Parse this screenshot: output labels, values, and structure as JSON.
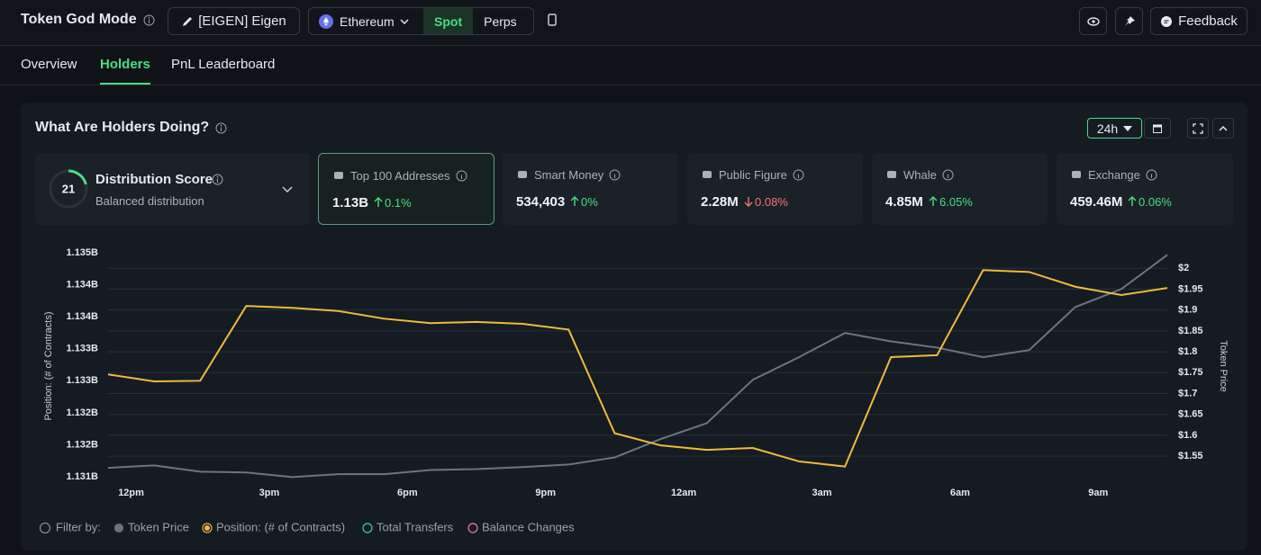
{
  "header": {
    "title": "Token God Mode",
    "token": "[EIGEN] Eigen",
    "chain": "Ethereum",
    "modes": [
      "Spot",
      "Perps"
    ],
    "active_mode": 0,
    "feedback": "Feedback"
  },
  "tabs": {
    "items": [
      "Overview",
      "Holders",
      "PnL Leaderboard"
    ],
    "active": 1
  },
  "panel": {
    "title": "What Are Holders Doing?",
    "range": "24h",
    "score": {
      "value": 21,
      "title": "Distribution Score",
      "subtitle": "Balanced distribution"
    },
    "cards": [
      {
        "label": "Top 100 Addresses",
        "value": "1.13B",
        "change": "0.1%",
        "direction": "up",
        "selected": true
      },
      {
        "label": "Smart Money",
        "value": "534,403",
        "change": "0%",
        "direction": "up"
      },
      {
        "label": "Public Figure",
        "value": "2.28M",
        "change": "0.08%",
        "direction": "down"
      },
      {
        "label": "Whale",
        "value": "4.85M",
        "change": "6.05%",
        "direction": "up"
      },
      {
        "label": "Exchange",
        "value": "459.46M",
        "change": "0.06%",
        "direction": "up"
      }
    ],
    "filter_label": "Filter by:"
  },
  "chart_data": {
    "type": "line",
    "ylabel": "Position: (# of Contracts)",
    "y2label": "Token Price",
    "x": [
      11.5,
      12.5,
      13.5,
      14.5,
      15.5,
      16.5,
      17.5,
      18.5,
      19.5,
      20.5,
      21.5,
      22.5,
      23.5,
      24.5,
      25.5,
      26.5,
      27.5,
      28.5,
      29.5,
      30.5,
      31.5,
      32.5,
      33.5,
      34.5
    ],
    "xlim": [
      11.5,
      34.5
    ],
    "xticks": [
      {
        "value": 12,
        "label": "12pm"
      },
      {
        "value": 15,
        "label": "3pm"
      },
      {
        "value": 18,
        "label": "6pm"
      },
      {
        "value": 21,
        "label": "9pm"
      },
      {
        "value": 24,
        "label": "12am"
      },
      {
        "value": 27,
        "label": "3am"
      },
      {
        "value": 30,
        "label": "6am"
      },
      {
        "value": 33,
        "label": "9am"
      }
    ],
    "ylim": [
      1130930000,
      1134585000
    ],
    "yticks": [
      {
        "value": 1131000000,
        "label": "1.131B"
      },
      {
        "value": 1131500000,
        "label": "1.132B"
      },
      {
        "value": 1132000000,
        "label": "1.132B"
      },
      {
        "value": 1132500000,
        "label": "1.133B"
      },
      {
        "value": 1133000000,
        "label": "1.133B"
      },
      {
        "value": 1133500000,
        "label": "1.134B"
      },
      {
        "value": 1134000000,
        "label": "1.134B"
      },
      {
        "value": 1134500000,
        "label": "1.135B"
      }
    ],
    "y2lim": [
      1.49,
      2.05
    ],
    "y2ticks": [
      {
        "value": 1.55,
        "label": "$1.55"
      },
      {
        "value": 1.6,
        "label": "$1.6"
      },
      {
        "value": 1.65,
        "label": "$1.65"
      },
      {
        "value": 1.7,
        "label": "$1.7"
      },
      {
        "value": 1.75,
        "label": "$1.75"
      },
      {
        "value": 1.8,
        "label": "$1.8"
      },
      {
        "value": 1.85,
        "label": "$1.85"
      },
      {
        "value": 1.9,
        "label": "$1.9"
      },
      {
        "value": 1.95,
        "label": "$1.95"
      },
      {
        "value": 2,
        "label": "$2"
      }
    ],
    "grid": true,
    "series": [
      {
        "name": "Position: (# of Contracts)",
        "color": "#f2b93b",
        "axis": "y",
        "values": [
          1132600000,
          1132490000,
          1132500000,
          1133670000,
          1133640000,
          1133590000,
          1133470000,
          1133400000,
          1133420000,
          1133390000,
          1133300000,
          1131680000,
          1131490000,
          1131420000,
          1131450000,
          1131240000,
          1131160000,
          1132870000,
          1132900000,
          1134230000,
          1134200000,
          1133970000,
          1133840000,
          1133950000
        ]
      },
      {
        "name": "Token Price",
        "color": "#6b7480",
        "axis": "y2",
        "values": [
          1.522,
          1.528,
          1.513,
          1.511,
          1.5,
          1.507,
          1.507,
          1.517,
          1.519,
          1.524,
          1.53,
          1.547,
          1.591,
          1.629,
          1.733,
          1.787,
          1.845,
          1.825,
          1.81,
          1.787,
          1.804,
          1.907,
          1.95,
          2.032
        ]
      }
    ],
    "inactive_series": [
      {
        "name": "Total Transfers",
        "color": "#2dd4bf"
      },
      {
        "name": "Balance Changes",
        "color": "#f472b6"
      }
    ]
  }
}
